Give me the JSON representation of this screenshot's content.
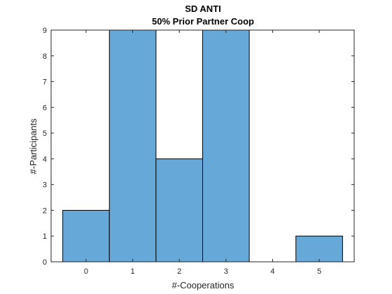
{
  "chart_data": {
    "type": "bar",
    "title": "SD ANTI",
    "subtitle": "50% Prior Partner Coop",
    "xlabel": "#-Cooperations",
    "ylabel": "#-Participants",
    "categories": [
      "0",
      "1",
      "2",
      "3",
      "4",
      "5"
    ],
    "x": [
      0,
      1,
      2,
      3,
      4,
      5
    ],
    "values": [
      2,
      9,
      4,
      9,
      0,
      1
    ],
    "xlim": [
      -0.75,
      5.75
    ],
    "ylim": [
      0,
      9
    ],
    "yticks": [
      "0",
      "1",
      "2",
      "3",
      "4",
      "5",
      "6",
      "7",
      "8",
      "9"
    ],
    "bar_color": "#66a8d8",
    "grid": false,
    "legend": "none"
  }
}
